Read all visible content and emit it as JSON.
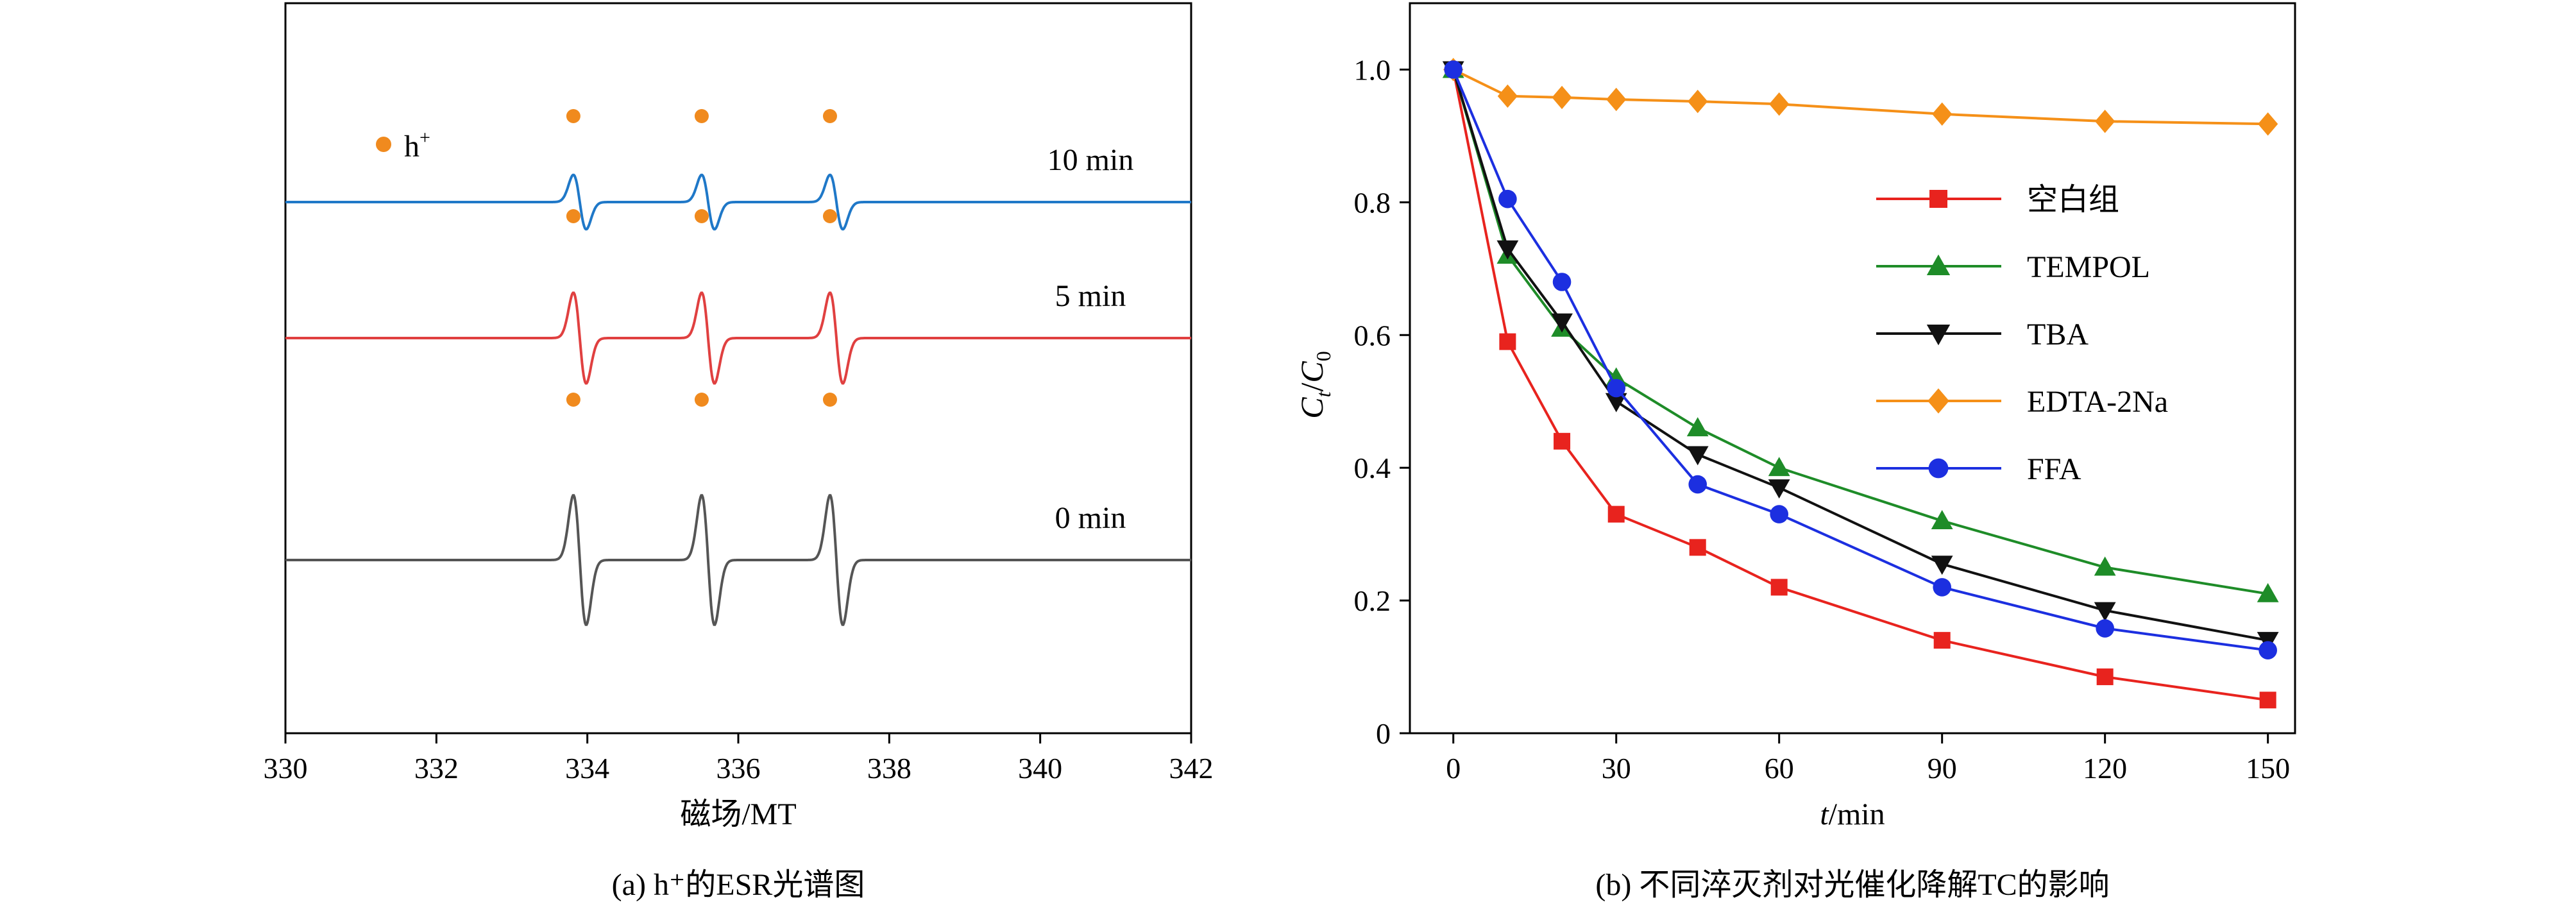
{
  "chart_data": [
    {
      "type": "line",
      "xlabel": "磁场/MT",
      "ylabel": "",
      "xlim": [
        330,
        342
      ],
      "xticks": [
        "330",
        "332",
        "334",
        "336",
        "338",
        "340",
        "342"
      ],
      "caption": "(a) h⁺的ESR光谱图",
      "legend": {
        "marker_color": "#f08a1e",
        "label": "h",
        "label_sup": "+",
        "position": "top-left"
      },
      "peak_centers": [
        333.9,
        335.6,
        337.3
      ],
      "series": [
        {
          "name": "10 min",
          "color": "#1f78c8",
          "amplitude": 0.42
        },
        {
          "name": "5 min",
          "color": "#e04040",
          "amplitude": 0.7
        },
        {
          "name": "0 min",
          "color": "#555555",
          "amplitude": 1.0
        }
      ]
    },
    {
      "type": "line",
      "xlabel_italic": "t",
      "xlabel_rest": "/min",
      "ylabel_parts": [
        "C",
        "t",
        "/",
        "C",
        "0"
      ],
      "xlim": [
        -8,
        155
      ],
      "ylim": [
        0,
        1.1
      ],
      "xticks": [
        0,
        30,
        60,
        90,
        120,
        150
      ],
      "yticks": [
        0,
        0.2,
        0.4,
        0.6,
        0.8,
        1.0
      ],
      "ytick_labels": [
        "0",
        "0.2",
        "0.4",
        "0.6",
        "0.8",
        "1.0"
      ],
      "caption": "(b) 不同淬灭剂对光催化降解TC的影响",
      "legend_position": "center-right",
      "x": [
        0,
        10,
        20,
        30,
        45,
        60,
        90,
        120,
        150
      ],
      "series": [
        {
          "name": "空白组",
          "color": "#e8231e",
          "marker": "square",
          "values": [
            1.0,
            0.59,
            0.44,
            0.33,
            0.28,
            0.22,
            0.14,
            0.085,
            0.05
          ]
        },
        {
          "name": "TEMPOL",
          "color": "#1e8c28",
          "marker": "triangle-up",
          "values": [
            1.0,
            0.72,
            0.61,
            0.535,
            0.46,
            0.4,
            0.32,
            0.25,
            0.21
          ]
        },
        {
          "name": "TBA",
          "color": "#111111",
          "marker": "triangle-down",
          "values": [
            1.0,
            0.73,
            0.62,
            0.5,
            0.42,
            0.37,
            0.255,
            0.185,
            0.14
          ]
        },
        {
          "name": "EDTA-2Na",
          "color": "#f59018",
          "marker": "diamond",
          "values": [
            1.0,
            0.96,
            0.958,
            0.955,
            0.952,
            0.948,
            0.933,
            0.922,
            0.918
          ]
        },
        {
          "name": "FFA",
          "color": "#1c2fe0",
          "marker": "circle",
          "values": [
            1.0,
            0.805,
            0.68,
            0.52,
            0.375,
            0.33,
            0.22,
            0.158,
            0.125
          ]
        }
      ]
    }
  ]
}
